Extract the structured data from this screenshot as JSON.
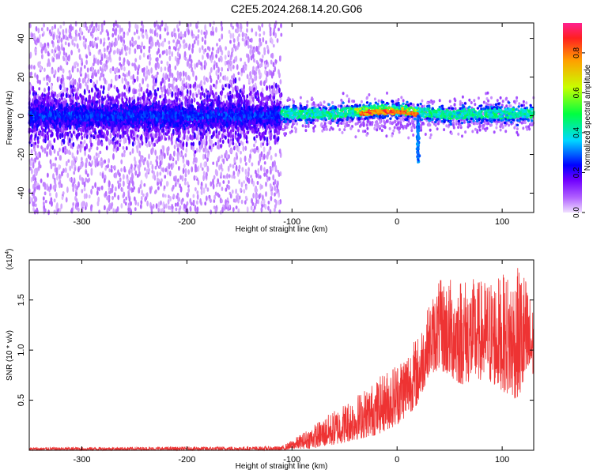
{
  "title": "C2E5.2024.268.14.20.G06",
  "chart_data": [
    {
      "type": "heatmap",
      "xlabel": "Height of straight line (km)",
      "ylabel": "Frequency (Hz)",
      "xlim": [
        -350,
        130
      ],
      "ylim": [
        -50,
        48
      ],
      "xticks": [
        -300,
        -200,
        -100,
        0,
        100
      ],
      "yticks": [
        -40,
        -20,
        0,
        20,
        40
      ],
      "colorbar": {
        "label": "Normalized spectral amplitude",
        "range": [
          0,
          0.95
        ],
        "ticks": [
          "0.0",
          "0.2",
          "0.4",
          "0.6",
          "0.8"
        ],
        "colormap": [
          "#f0e0ff",
          "#8000ff",
          "#0000ff",
          "#00e0ff",
          "#00ff60",
          "#c0ff00",
          "#ffa000",
          "#ff2080"
        ]
      },
      "notes": {
        "noisy_region_x": [
          -350,
          -110
        ],
        "signal_band_hz": [
          -8,
          8
        ],
        "dip_feature": {
          "x": 20,
          "y_min": -24
        }
      }
    },
    {
      "type": "line",
      "xlabel": "Height of straight line (km)",
      "ylabel": "SNR (10 * v/v)",
      "yscale_label": "(x10^4)",
      "xlim": [
        -350,
        130
      ],
      "ylim": [
        0,
        1.9
      ],
      "xticks": [
        -300,
        -200,
        -100,
        0,
        100
      ],
      "yticks": [
        "0.5",
        "1.0",
        "1.5"
      ],
      "color": "#ee3333",
      "envelope": {
        "x": [
          -350,
          -110,
          -100,
          -80,
          -60,
          -40,
          -20,
          0,
          20,
          30,
          40,
          60,
          80,
          100,
          110,
          120,
          130
        ],
        "low": [
          0.0,
          0.0,
          0.01,
          0.02,
          0.05,
          0.1,
          0.15,
          0.25,
          0.45,
          0.75,
          0.8,
          0.65,
          0.7,
          0.6,
          0.5,
          0.55,
          0.75
        ],
        "high": [
          0.03,
          0.04,
          0.1,
          0.25,
          0.4,
          0.55,
          0.7,
          0.9,
          1.15,
          1.45,
          1.7,
          1.75,
          1.7,
          1.75,
          1.8,
          1.85,
          1.4
        ]
      }
    }
  ]
}
